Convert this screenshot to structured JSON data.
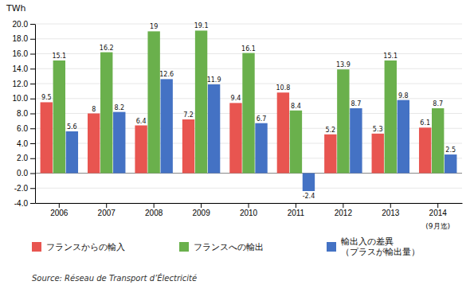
{
  "chart_data": {
    "type": "bar",
    "ylabel": "TWh",
    "categories": [
      "2006",
      "2007",
      "2008",
      "2009",
      "2010",
      "2011",
      "2012",
      "2013",
      "2014"
    ],
    "series": [
      {
        "name": "フランスからの輸入",
        "color": "#e85550",
        "values": [
          9.5,
          8.0,
          6.4,
          7.2,
          9.4,
          10.8,
          5.2,
          5.3,
          6.1
        ]
      },
      {
        "name": "フランスへの輸出",
        "color": "#6ab04c",
        "values": [
          15.1,
          16.2,
          19.0,
          19.1,
          16.1,
          8.4,
          13.9,
          15.1,
          8.7
        ]
      },
      {
        "name": "輸出入の差異\n（プラスが輸出量）",
        "color": "#4472c4",
        "values": [
          5.6,
          8.2,
          12.6,
          11.9,
          6.7,
          -2.4,
          8.7,
          9.8,
          2.5
        ]
      }
    ],
    "ylim": [
      -4.0,
      20.0
    ],
    "yticks": [
      {
        "value": -4.0,
        "label": "-4.0"
      },
      {
        "value": -2.0,
        "label": "-2.0"
      },
      {
        "value": 0.0,
        "label": "0.0"
      },
      {
        "value": 2.0,
        "label": "2.0"
      },
      {
        "value": 4.0,
        "label": "4.0"
      },
      {
        "value": 6.0,
        "label": "6.0"
      },
      {
        "value": 8.0,
        "label": "8.0"
      },
      {
        "value": 10.0,
        "label": "10.0"
      },
      {
        "value": 12.0,
        "label": "12.0"
      },
      {
        "value": 14.0,
        "label": "14.0"
      },
      {
        "value": 16.0,
        "label": "16.0"
      },
      {
        "value": 18.0,
        "label": "18.0"
      },
      {
        "value": 20.0,
        "label": "20.0"
      }
    ],
    "grid": true,
    "data_labels": true,
    "annotations": [
      "(9月迄)"
    ],
    "source": "Source: Réseau de Transport d’Électricité"
  }
}
